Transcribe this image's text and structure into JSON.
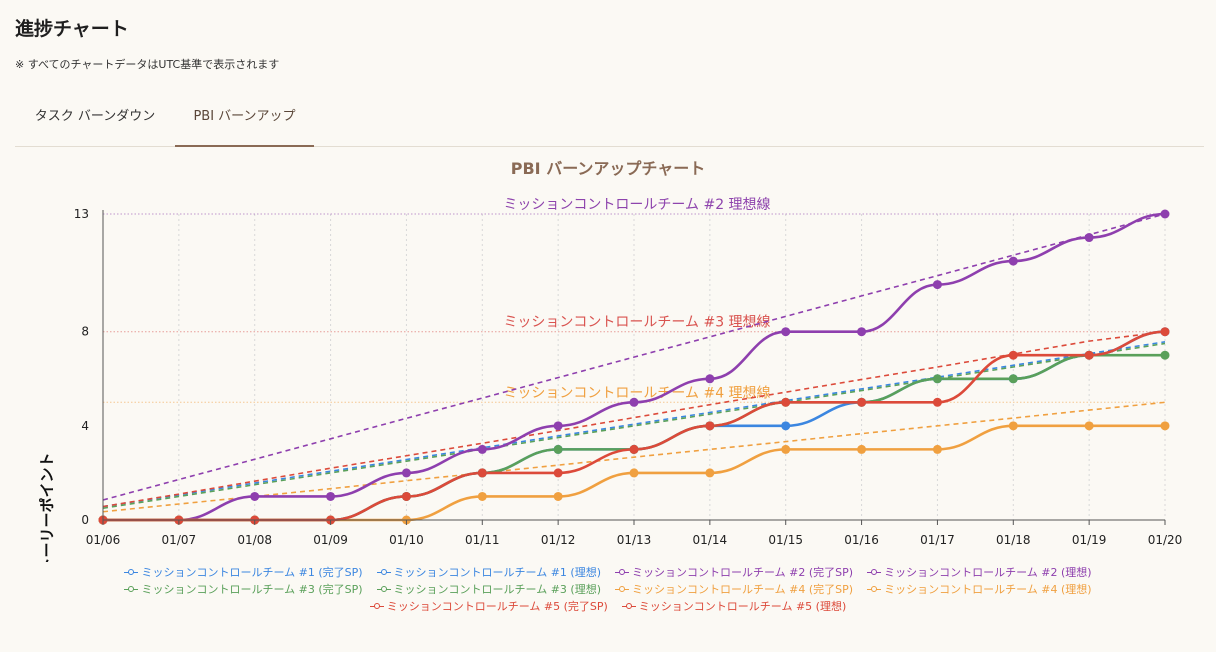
{
  "page": {
    "title": "進捗チャート",
    "note": "※ すべてのチャートデータはUTC基準で表示されます"
  },
  "tabs": [
    {
      "label": "タスク バーンダウン",
      "active": false
    },
    {
      "label": "PBI バーンアップ",
      "active": true
    }
  ],
  "chart_data": {
    "type": "line",
    "title": "PBI バーンアップチャート",
    "xlabel": "",
    "ylabel": "ストーリーポイント",
    "categories": [
      "01/06",
      "01/07",
      "01/08",
      "01/09",
      "01/10",
      "01/11",
      "01/12",
      "01/13",
      "01/14",
      "01/15",
      "01/16",
      "01/17",
      "01/18",
      "01/19",
      "01/20"
    ],
    "ylim": [
      0,
      13
    ],
    "yticks": [
      0,
      4,
      8,
      13
    ],
    "grid": true,
    "legend_position": "bottom",
    "reference_lines": [
      {
        "label": "ミッションコントロールチーム #2 理想線",
        "y": 13,
        "color": "#8e44ad"
      },
      {
        "label": "ミッションコントロールチーム #3 理想線",
        "y": 8,
        "color": "#d9534f"
      },
      {
        "label": "ミッションコントロールチーム #4 理想線",
        "y": 5,
        "color": "#f0a040"
      }
    ],
    "series": [
      {
        "name": "ミッションコントロールチーム #1 (完了SP)",
        "style": "actual",
        "color": "#3b86e0",
        "values": [
          0,
          0,
          0,
          0,
          1,
          2,
          3,
          3,
          4,
          4,
          5,
          6,
          6,
          7,
          8
        ]
      },
      {
        "name": "ミッションコントロールチーム #1 (理想)",
        "style": "ideal",
        "color": "#3b86e0",
        "values": [
          0.57,
          1.07,
          1.57,
          2.07,
          2.57,
          3.07,
          3.57,
          4.07,
          4.57,
          5.07,
          5.57,
          6.07,
          6.57,
          7.07,
          7.57
        ]
      },
      {
        "name": "ミッションコントロールチーム #2 (完了SP)",
        "style": "actual",
        "color": "#8e3fae",
        "values": [
          0,
          0,
          1,
          1,
          2,
          3,
          4,
          5,
          6,
          8,
          8,
          10,
          11,
          12,
          13
        ]
      },
      {
        "name": "ミッションコントロールチーム #2 (理想)",
        "style": "ideal",
        "color": "#8e3fae",
        "values": [
          0.85,
          1.72,
          2.58,
          3.45,
          4.32,
          5.18,
          6.05,
          6.92,
          7.78,
          8.65,
          9.52,
          10.38,
          11.25,
          12.12,
          13
        ]
      },
      {
        "name": "ミッションコントロールチーム #3 (完了SP)",
        "style": "actual",
        "color": "#5aa05a",
        "values": [
          0,
          0,
          0,
          0,
          1,
          2,
          3,
          3,
          4,
          5,
          5,
          6,
          6,
          7,
          7
        ]
      },
      {
        "name": "ミッションコントロールチーム #3 (理想)",
        "style": "ideal",
        "color": "#5aa05a",
        "values": [
          0.5,
          1.0,
          1.5,
          2.0,
          2.5,
          3.0,
          3.5,
          4.0,
          4.5,
          5.0,
          5.5,
          6.0,
          6.5,
          7.0,
          7.5
        ]
      },
      {
        "name": "ミッションコントロールチーム #4 (完了SP)",
        "style": "actual",
        "color": "#f0a040",
        "values": [
          0,
          0,
          0,
          0,
          0,
          1,
          1,
          2,
          2,
          3,
          3,
          3,
          4,
          4,
          4
        ]
      },
      {
        "name": "ミッションコントロールチーム #4 (理想)",
        "style": "ideal",
        "color": "#f0a040",
        "values": [
          0.35,
          0.68,
          1.0,
          1.33,
          1.67,
          2.0,
          2.33,
          2.67,
          3.0,
          3.33,
          3.67,
          4.0,
          4.33,
          4.67,
          5.0
        ]
      },
      {
        "name": "ミッションコントロールチーム #5 (完了SP)",
        "style": "actual",
        "color": "#dc4a3a",
        "values": [
          0,
          0,
          0,
          0,
          1,
          2,
          2,
          3,
          4,
          5,
          5,
          5,
          7,
          7,
          8
        ]
      },
      {
        "name": "ミッションコントロールチーム #5 (理想)",
        "style": "ideal",
        "color": "#dc4a3a",
        "values": [
          0.57,
          1.1,
          1.65,
          2.2,
          2.73,
          3.26,
          3.8,
          4.35,
          4.9,
          5.43,
          5.97,
          6.5,
          7.05,
          7.6,
          8.0
        ]
      }
    ]
  }
}
